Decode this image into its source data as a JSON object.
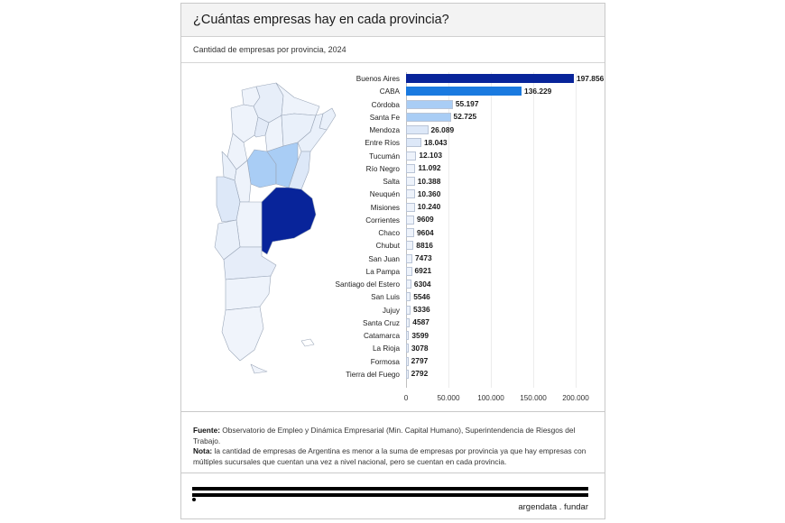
{
  "header": {
    "title": "¿Cuántas empresas hay en cada provincia?"
  },
  "subheader": {
    "subtitle": "Cantidad de empresas por provincia, 2024"
  },
  "colors": {
    "max": "#08249a",
    "high": "#1a7ae0",
    "mid": "#a9cdf5",
    "low": "#dde8f8",
    "lowest": "#eef3fb",
    "grid": "#ececec"
  },
  "chart_data": {
    "type": "bar",
    "orientation": "horizontal",
    "title": "¿Cuántas empresas hay en cada provincia?",
    "subtitle": "Cantidad de empresas por provincia, 2024",
    "xlabel": "",
    "ylabel": "",
    "xlim": [
      0,
      210000
    ],
    "xticks": [
      0,
      50000,
      100000,
      150000,
      200000
    ],
    "xtick_labels": [
      "0",
      "50.000",
      "100.000",
      "150.000",
      "200.000"
    ],
    "grid": true,
    "legend": null,
    "categories": [
      "Buenos Aires",
      "CABA",
      "Córdoba",
      "Santa Fe",
      "Mendoza",
      "Entre Ríos",
      "Tucumán",
      "Río Negro",
      "Salta",
      "Neuquén",
      "Misiones",
      "Corrientes",
      "Chaco",
      "Chubut",
      "San Juan",
      "La Pampa",
      "Santiago del Estero",
      "San Luis",
      "Jujuy",
      "Santa Cruz",
      "Catamarca",
      "La Rioja",
      "Formosa",
      "Tierra del Fuego"
    ],
    "values": [
      197856,
      136229,
      55197,
      52725,
      26089,
      18043,
      12103,
      11092,
      10388,
      10360,
      10240,
      9609,
      9604,
      8816,
      7473,
      6921,
      6304,
      5546,
      5336,
      4587,
      3599,
      3078,
      2797,
      2792
    ],
    "value_labels": [
      "197.856",
      "136.229",
      "55.197",
      "52.725",
      "26.089",
      "18.043",
      "12.103",
      "11.092",
      "10.388",
      "10.360",
      "10.240",
      "9609",
      "9604",
      "8816",
      "7473",
      "6921",
      "6304",
      "5546",
      "5336",
      "4587",
      "3599",
      "3078",
      "2797",
      "2792"
    ],
    "annotations": [
      "Choropleth map of Argentina provinces shaded by number of companies"
    ]
  },
  "footer": {
    "source_label": "Fuente:",
    "source_text": " Observatorio de Empleo y Dinámica Empresarial (Min. Capital Humano), Superintendencia de Riesgos del Trabajo.",
    "note_label": "Nota:",
    "note_text": " la cantidad de empresas de Argentina es menor a la suma de empresas por provincia ya que hay empresas con múltiples sucursales que cuentan una vez a nivel nacional, pero se cuentan en cada provincia.",
    "brand": "argendata . fundar"
  }
}
